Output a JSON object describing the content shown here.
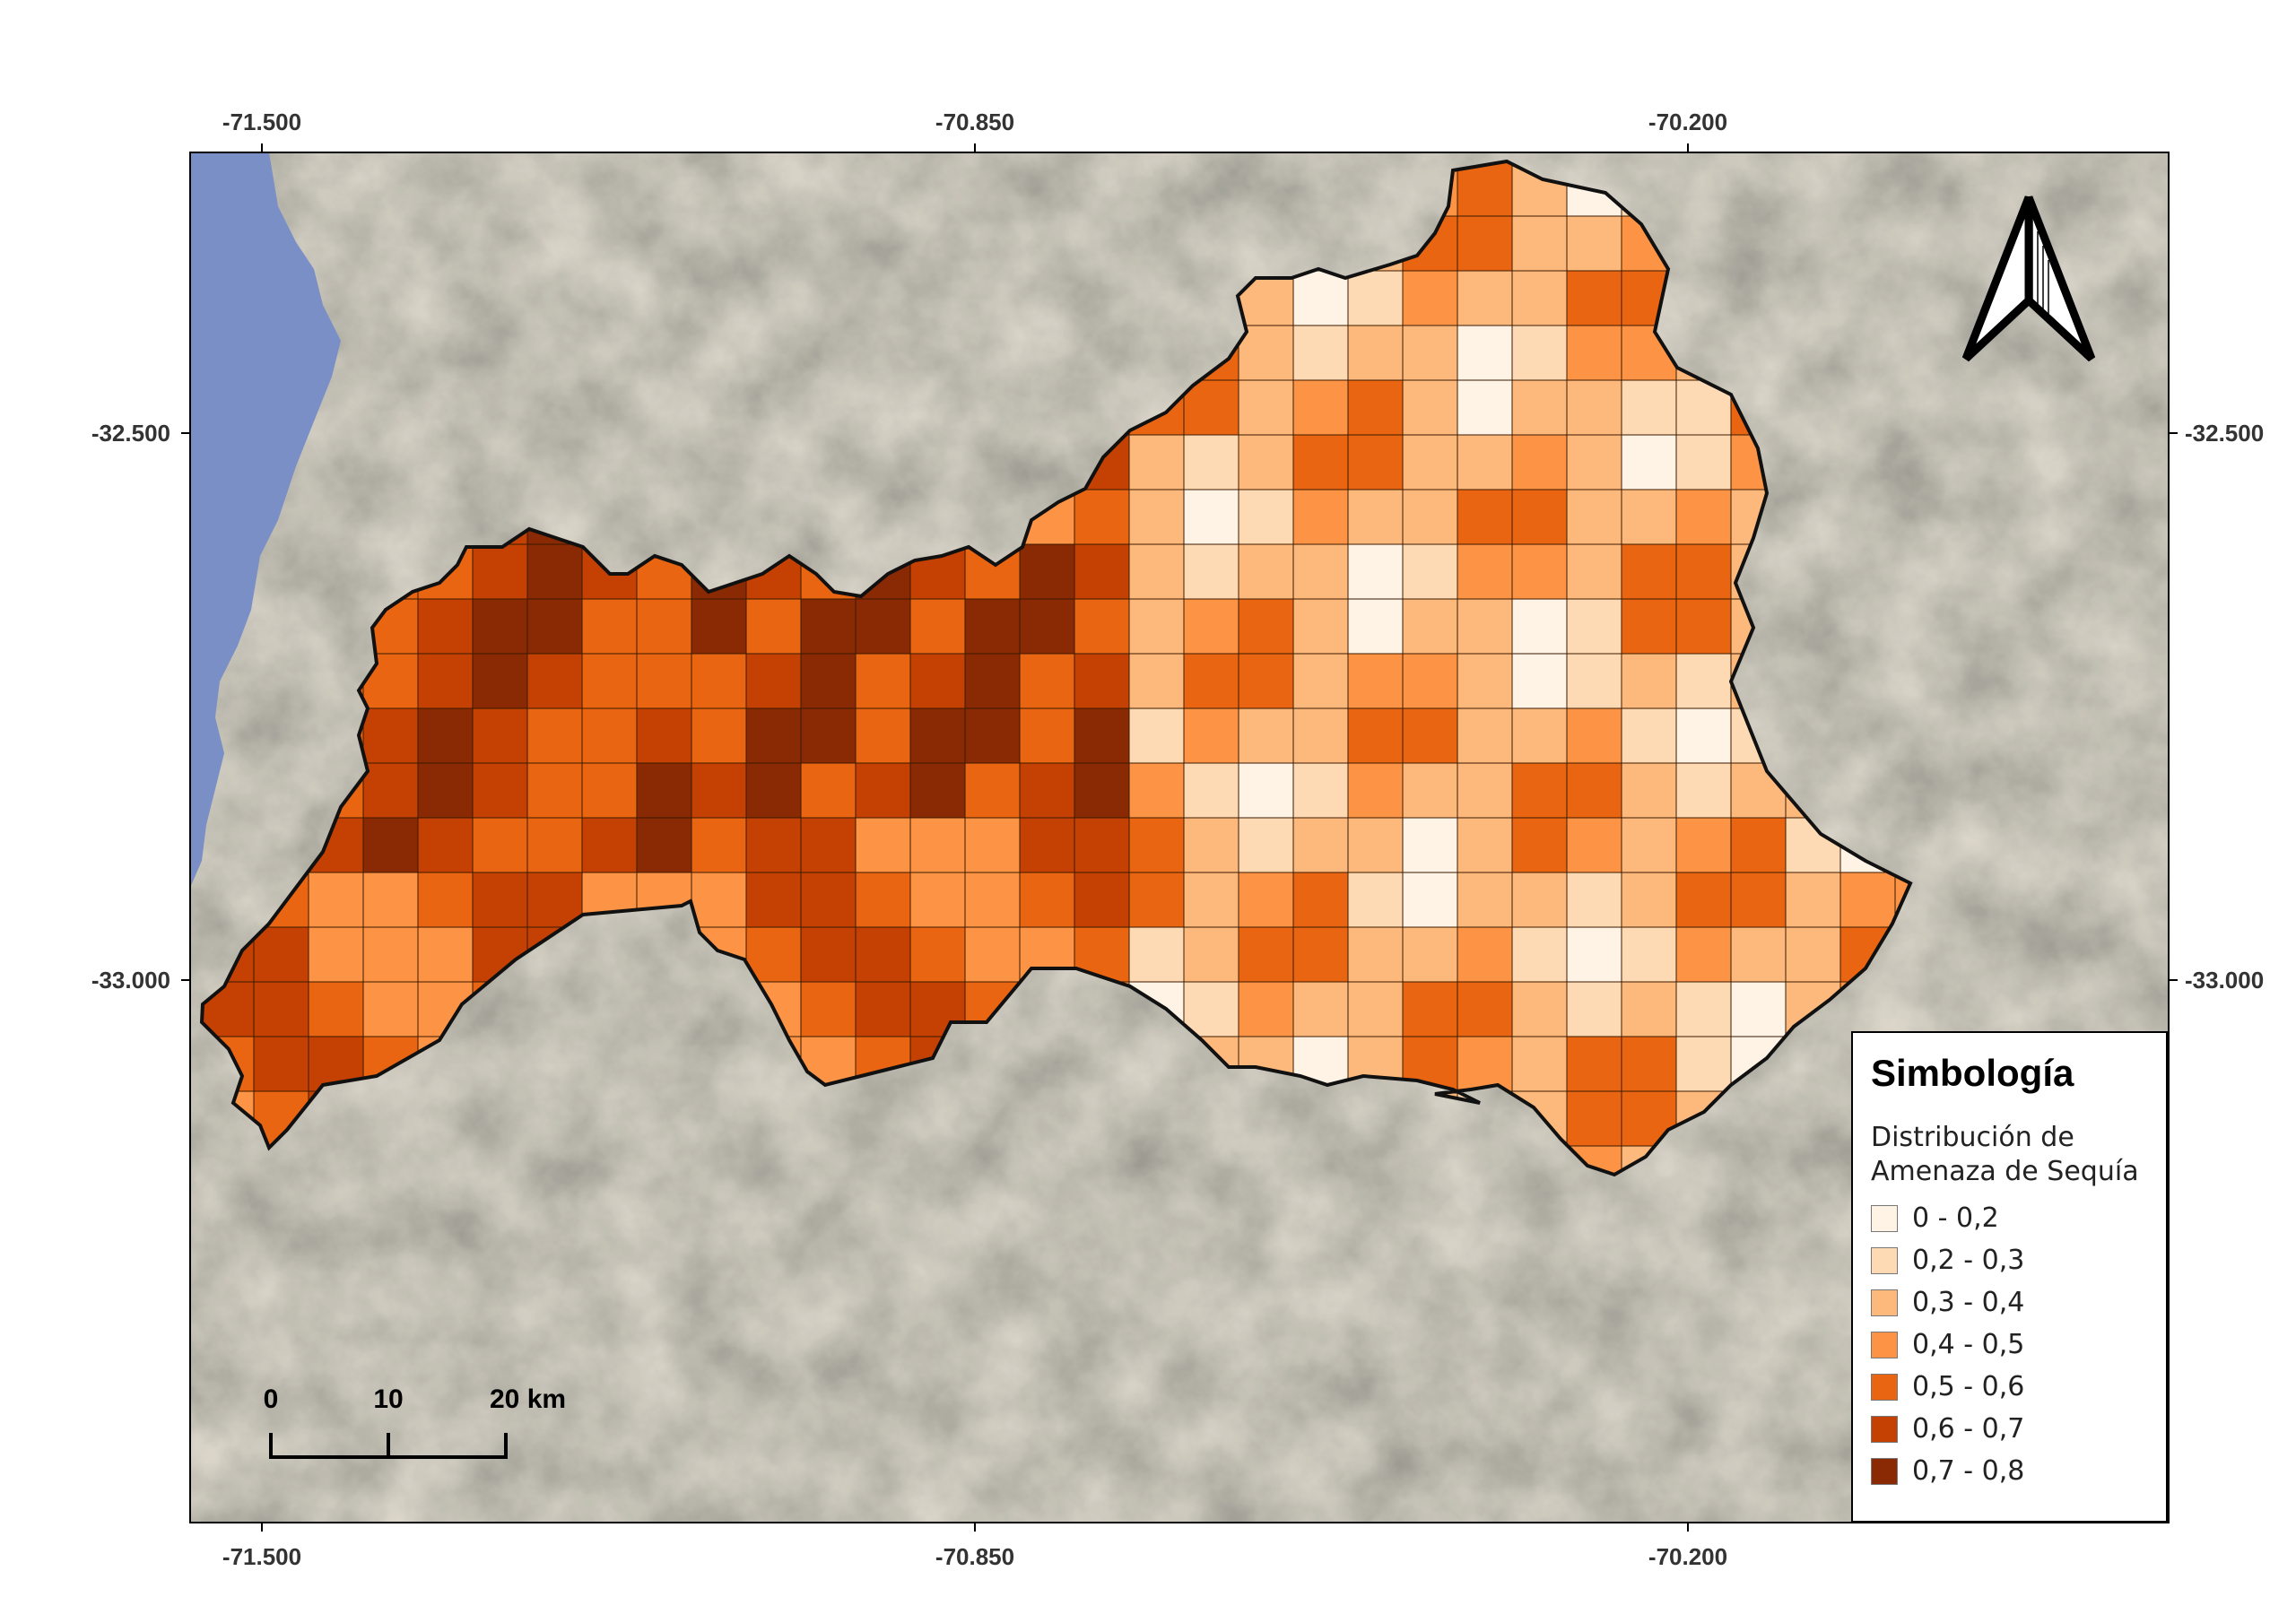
{
  "map": {
    "title": "",
    "x_ticks": [
      "-71.500",
      "-70.850",
      "-70.200"
    ],
    "y_ticks": [
      "-32.500",
      "-33.000"
    ],
    "scale_bar": {
      "labels": [
        "0",
        "10",
        "20 km"
      ]
    },
    "north_arrow": {
      "icon": "north-arrow-icon"
    },
    "colors": {
      "ocean": "#7b8fc7",
      "terrain": "#8a8a7c",
      "outline": "#111111",
      "grid_line": "#3a1a00"
    }
  },
  "legend": {
    "title": "Simbología",
    "subtitle_lines": [
      "Distribución de",
      "Amenaza de Sequía"
    ],
    "classes": [
      {
        "label": "0 - 0,2",
        "color": "#fff3e6"
      },
      {
        "label": "0,2 - 0,3",
        "color": "#fdd9b4"
      },
      {
        "label": "0,3 - 0,4",
        "color": "#fdb97b"
      },
      {
        "label": "0,4 - 0,5",
        "color": "#fd9445"
      },
      {
        "label": "0,5 - 0,6",
        "color": "#ea6512"
      },
      {
        "label": "0,6 - 0,7",
        "color": "#c44103"
      },
      {
        "label": "0,7 - 0,8",
        "color": "#8a2a04"
      }
    ]
  }
}
